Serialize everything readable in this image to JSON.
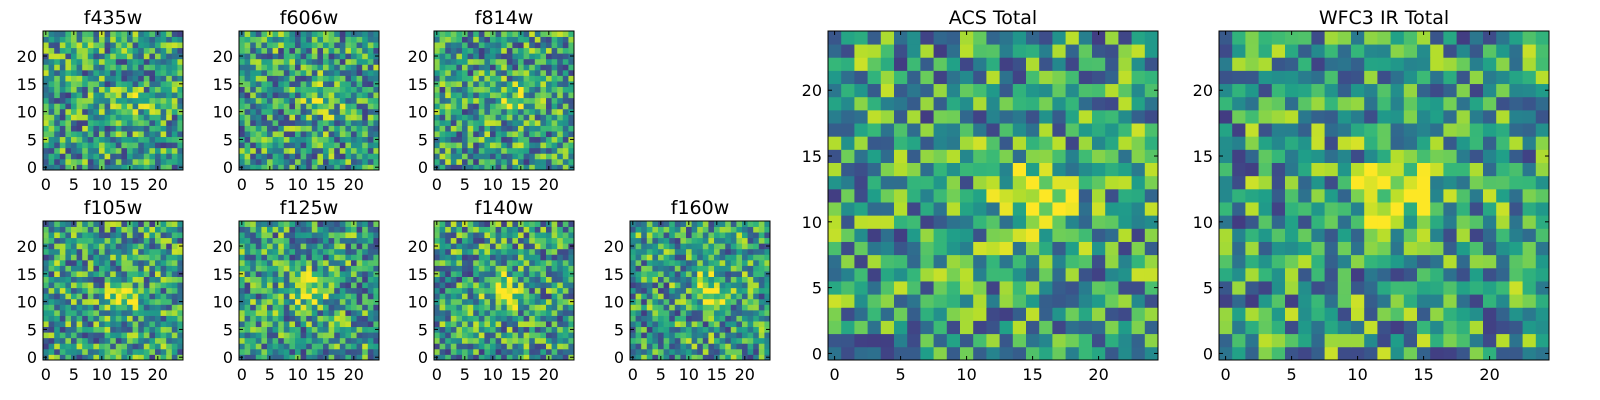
{
  "chart_data": [
    {
      "type": "heatmap",
      "title": "f435w",
      "x_range": [
        0,
        24
      ],
      "y_range": [
        0,
        24
      ],
      "grid_size": [
        25,
        25
      ],
      "xticks": [
        0,
        5,
        10,
        15,
        20
      ],
      "yticks": [
        0,
        5,
        10,
        15,
        20
      ],
      "colormap": "viridis",
      "peak": [
        15,
        12
      ],
      "peak_amp": 0.25,
      "seed": 11
    },
    {
      "type": "heatmap",
      "title": "f606w",
      "x_range": [
        0,
        24
      ],
      "y_range": [
        0,
        24
      ],
      "grid_size": [
        25,
        25
      ],
      "xticks": [
        0,
        5,
        10,
        15,
        20
      ],
      "yticks": [
        0,
        5,
        10,
        15,
        20
      ],
      "colormap": "viridis",
      "peak": [
        14,
        12
      ],
      "peak_amp": 0.3,
      "seed": 23
    },
    {
      "type": "heatmap",
      "title": "f814w",
      "x_range": [
        0,
        24
      ],
      "y_range": [
        0,
        24
      ],
      "grid_size": [
        25,
        25
      ],
      "xticks": [
        0,
        5,
        10,
        15,
        20
      ],
      "yticks": [
        0,
        5,
        10,
        15,
        20
      ],
      "colormap": "viridis",
      "peak": [
        14,
        12
      ],
      "peak_amp": 0.3,
      "seed": 37
    },
    {
      "type": "heatmap",
      "title": "f105w",
      "x_range": [
        0,
        24
      ],
      "y_range": [
        0,
        24
      ],
      "grid_size": [
        25,
        25
      ],
      "xticks": [
        0,
        5,
        10,
        15,
        20
      ],
      "yticks": [
        0,
        5,
        10,
        15,
        20
      ],
      "colormap": "viridis",
      "peak": [
        14,
        11
      ],
      "peak_amp": 0.45,
      "seed": 41
    },
    {
      "type": "heatmap",
      "title": "f125w",
      "x_range": [
        0,
        24
      ],
      "y_range": [
        0,
        24
      ],
      "grid_size": [
        25,
        25
      ],
      "xticks": [
        0,
        5,
        10,
        15,
        20
      ],
      "yticks": [
        0,
        5,
        10,
        15,
        20
      ],
      "colormap": "viridis",
      "peak": [
        12,
        12
      ],
      "peak_amp": 0.45,
      "seed": 53
    },
    {
      "type": "heatmap",
      "title": "f140w",
      "x_range": [
        0,
        24
      ],
      "y_range": [
        0,
        24
      ],
      "grid_size": [
        25,
        25
      ],
      "xticks": [
        0,
        5,
        10,
        15,
        20
      ],
      "yticks": [
        0,
        5,
        10,
        15,
        20
      ],
      "colormap": "viridis",
      "peak": [
        12,
        12
      ],
      "peak_amp": 0.45,
      "seed": 67
    },
    {
      "type": "heatmap",
      "title": "f160w",
      "x_range": [
        0,
        24
      ],
      "y_range": [
        0,
        24
      ],
      "grid_size": [
        25,
        25
      ],
      "xticks": [
        0,
        5,
        10,
        15,
        20
      ],
      "yticks": [
        0,
        5,
        10,
        15,
        20
      ],
      "colormap": "viridis",
      "peak": [
        14,
        12
      ],
      "peak_amp": 0.45,
      "seed": 79
    },
    {
      "type": "heatmap",
      "title": "ACS Total",
      "x_range": [
        0,
        24
      ],
      "y_range": [
        0,
        24
      ],
      "grid_size": [
        25,
        25
      ],
      "xticks": [
        0,
        5,
        10,
        15,
        20
      ],
      "yticks": [
        0,
        5,
        10,
        15,
        20
      ],
      "colormap": "viridis",
      "peak": [
        15,
        12
      ],
      "peak_amp": 0.4,
      "seed": 97
    },
    {
      "type": "heatmap",
      "title": "WFC3 IR Total",
      "x_range": [
        0,
        24
      ],
      "y_range": [
        0,
        24
      ],
      "grid_size": [
        25,
        25
      ],
      "xticks": [
        0,
        5,
        10,
        15,
        20
      ],
      "yticks": [
        0,
        5,
        10,
        15,
        20
      ],
      "colormap": "viridis",
      "peak": [
        13,
        12
      ],
      "peak_amp": 0.5,
      "seed": 113
    }
  ]
}
